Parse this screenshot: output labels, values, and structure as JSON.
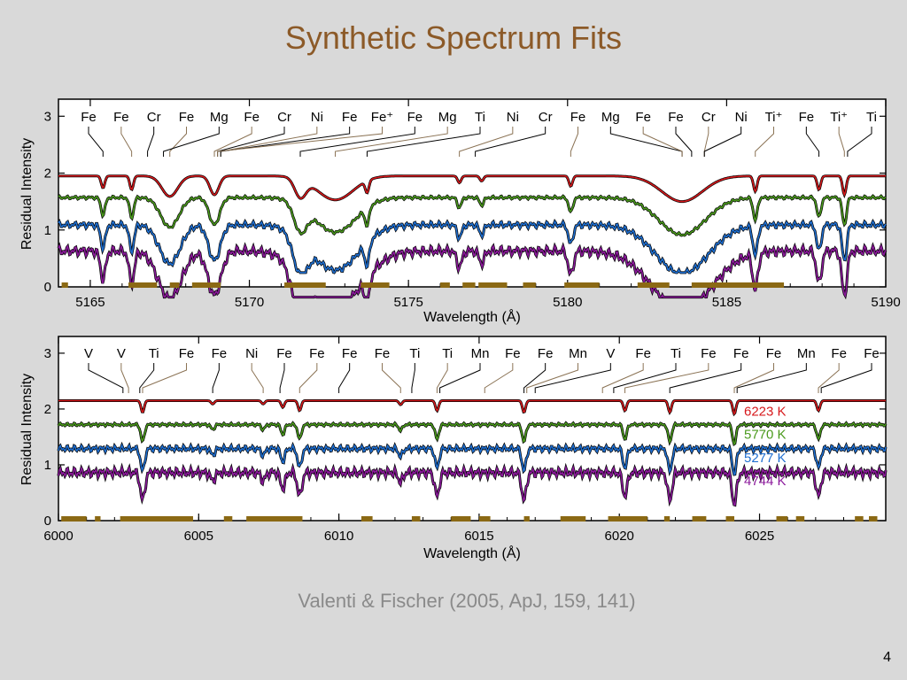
{
  "slide": {
    "title": "Synthetic Spectrum Fits",
    "citation": "Valenti & Fischer (2005, ApJ, 159, 141)",
    "page_number": "4"
  },
  "colors": {
    "title": "#8c5a28",
    "observed": "#000000",
    "mask_bars": "#8b6914",
    "id_lines_neutral": "#000000",
    "id_lines_alt": "#8b7355"
  },
  "chart_data": [
    {
      "type": "line",
      "title": "",
      "xlabel": "Wavelength (Å)",
      "ylabel": "Residual Intensity",
      "xlim": [
        5164,
        5190
      ],
      "ylim": [
        0,
        3.3
      ],
      "x_ticks": [
        "5165",
        "5170",
        "5175",
        "5180",
        "5185",
        "5190"
      ],
      "y_ticks": [
        "0",
        "1",
        "2",
        "3"
      ],
      "grid": false,
      "line_ids": [
        {
          "label": "Fe",
          "w": 5165.4
        },
        {
          "label": "Fe",
          "w": 5166.3
        },
        {
          "label": "Cr",
          "w": 5166.8
        },
        {
          "label": "Fe",
          "w": 5167.5
        },
        {
          "label": "Mg",
          "w": 5167.3
        },
        {
          "label": "Fe",
          "w": 5168.9
        },
        {
          "label": "Cr",
          "w": 5169.0
        },
        {
          "label": "Ni",
          "w": 5169.1
        },
        {
          "label": "Fe",
          "w": 5169.1
        },
        {
          "label": "Fe⁺",
          "w": 5169.0
        },
        {
          "label": "Fe",
          "w": 5171.6
        },
        {
          "label": "Mg",
          "w": 5172.7
        },
        {
          "label": "Ti",
          "w": 5173.7
        },
        {
          "label": "Ni",
          "w": 5176.6
        },
        {
          "label": "Cr",
          "w": 5177.1
        },
        {
          "label": "Fe",
          "w": 5180.1
        },
        {
          "label": "Mg",
          "w": 5183.6
        },
        {
          "label": "Fe",
          "w": 5183.6
        },
        {
          "label": "Fe",
          "w": 5183.9
        },
        {
          "label": "Cr",
          "w": 5184.3
        },
        {
          "label": "Ni",
          "w": 5184.3
        },
        {
          "label": "Ti⁺",
          "w": 5185.9
        },
        {
          "label": "Fe",
          "w": 5187.9
        },
        {
          "label": "Ti⁺",
          "w": 5188.7
        },
        {
          "label": "Ti",
          "w": 5188.8
        }
      ],
      "series": [
        {
          "name": "",
          "offset": 1.95,
          "line_color": "#d7191c"
        },
        {
          "name": "",
          "offset": 1.6,
          "line_color": "#4a9a1c"
        },
        {
          "name": "",
          "offset": 1.15,
          "line_color": "#1f6fd1"
        },
        {
          "name": "",
          "offset": 0.72,
          "line_color": "#8c1a9c"
        }
      ],
      "absorption_lines": [
        {
          "w": 5165.4,
          "d": 0.35
        },
        {
          "w": 5166.3,
          "d": 0.4
        },
        {
          "w": 5167.5,
          "d": 0.6,
          "wd": 0.35
        },
        {
          "w": 5168.9,
          "d": 0.55,
          "wd": 0.2
        },
        {
          "w": 5171.6,
          "d": 0.55,
          "wd": 0.25
        },
        {
          "w": 5172.7,
          "d": 0.7,
          "wd": 0.8
        },
        {
          "w": 5173.7,
          "d": 0.35
        },
        {
          "w": 5176.6,
          "d": 0.2
        },
        {
          "w": 5177.3,
          "d": 0.15
        },
        {
          "w": 5180.1,
          "d": 0.3
        },
        {
          "w": 5183.6,
          "d": 0.75,
          "wd": 0.9
        },
        {
          "w": 5185.9,
          "d": 0.45
        },
        {
          "w": 5187.9,
          "d": 0.4
        },
        {
          "w": 5188.7,
          "d": 0.55
        }
      ]
    },
    {
      "type": "line",
      "title": "",
      "xlabel": "Wavelength (Å)",
      "ylabel": "Residual Intensity",
      "xlim": [
        6000,
        6029.5
      ],
      "ylim": [
        0,
        3.3
      ],
      "x_ticks": [
        "6000",
        "6005",
        "6010",
        "6015",
        "6020",
        "6025"
      ],
      "y_ticks": [
        "0",
        "1",
        "2",
        "3"
      ],
      "grid": false,
      "line_ids": [
        {
          "label": "V",
          "w": 6002.3
        },
        {
          "label": "V",
          "w": 6002.5
        },
        {
          "label": "Ti",
          "w": 6002.9
        },
        {
          "label": "Fe",
          "w": 6003.0
        },
        {
          "label": "Fe",
          "w": 6005.5
        },
        {
          "label": "Ni",
          "w": 6007.3
        },
        {
          "label": "Fe",
          "w": 6007.9
        },
        {
          "label": "Fe",
          "w": 6008.6
        },
        {
          "label": "Fe",
          "w": 6010.0
        },
        {
          "label": "Fe",
          "w": 6012.2
        },
        {
          "label": "Ti",
          "w": 6012.6
        },
        {
          "label": "Ti",
          "w": 6013.5
        },
        {
          "label": "Mn",
          "w": 6013.6
        },
        {
          "label": "Fe",
          "w": 6015.2
        },
        {
          "label": "Fe",
          "w": 6016.6
        },
        {
          "label": "Mn",
          "w": 6016.7
        },
        {
          "label": "V",
          "w": 6017.0
        },
        {
          "label": "Fe",
          "w": 6019.4
        },
        {
          "label": "Ti",
          "w": 6019.8
        },
        {
          "label": "Fe",
          "w": 6020.2
        },
        {
          "label": "Fe",
          "w": 6021.8
        },
        {
          "label": "Fe",
          "w": 6024.1
        },
        {
          "label": "Mn",
          "w": 6024.2
        },
        {
          "label": "Fe",
          "w": 6027.1
        },
        {
          "label": "Fe",
          "w": 6027.2
        }
      ],
      "series": [
        {
          "name": "6223 K",
          "offset": 2.15,
          "line_color": "#d7191c"
        },
        {
          "name": "5770 K",
          "offset": 1.75,
          "line_color": "#4a9a1c"
        },
        {
          "name": "5277 K",
          "offset": 1.35,
          "line_color": "#1f6fd1"
        },
        {
          "name": "4744 K",
          "offset": 0.95,
          "line_color": "#8c1a9c"
        }
      ],
      "absorption_lines": [
        {
          "w": 6003.0,
          "d": 0.35
        },
        {
          "w": 6005.5,
          "d": 0.1
        },
        {
          "w": 6007.3,
          "d": 0.1
        },
        {
          "w": 6008.0,
          "d": 0.2
        },
        {
          "w": 6008.6,
          "d": 0.3
        },
        {
          "w": 6012.2,
          "d": 0.12
        },
        {
          "w": 6013.5,
          "d": 0.3
        },
        {
          "w": 6016.6,
          "d": 0.35
        },
        {
          "w": 6020.2,
          "d": 0.3
        },
        {
          "w": 6021.8,
          "d": 0.35
        },
        {
          "w": 6024.1,
          "d": 0.4
        },
        {
          "w": 6027.1,
          "d": 0.3
        }
      ]
    }
  ]
}
